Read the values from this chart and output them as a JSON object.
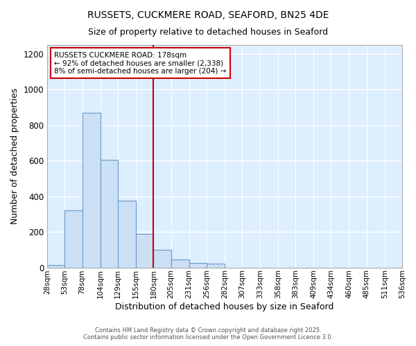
{
  "title1": "RUSSETS, CUCKMERE ROAD, SEAFORD, BN25 4DE",
  "title2": "Size of property relative to detached houses in Seaford",
  "xlabel": "Distribution of detached houses by size in Seaford",
  "ylabel": "Number of detached properties",
  "bin_edges": [
    28,
    53,
    78,
    104,
    129,
    155,
    180,
    205,
    231,
    256,
    282,
    307,
    333,
    358,
    383,
    409,
    434,
    460,
    485,
    511,
    536
  ],
  "bar_heights": [
    15,
    320,
    870,
    605,
    375,
    190,
    100,
    45,
    25,
    20,
    0,
    0,
    0,
    0,
    0,
    0,
    0,
    0,
    0,
    0
  ],
  "bar_color": "#cce0f5",
  "bar_edge_color": "#6699cc",
  "vline_x": 180,
  "vline_color": "#cc0000",
  "annotation_text": "RUSSETS CUCKMERE ROAD: 178sqm\n← 92% of detached houses are smaller (2,338)\n8% of semi-detached houses are larger (204) →",
  "annotation_box_color": "#ffffff",
  "annotation_box_edge": "#cc0000",
  "ylim": [
    0,
    1250
  ],
  "yticks": [
    0,
    200,
    400,
    600,
    800,
    1000,
    1200
  ],
  "plot_bg_color": "#ddeeff",
  "fig_bg_color": "#ffffff",
  "grid_color": "#ffffff",
  "footer1": "Contains HM Land Registry data © Crown copyright and database right 2025.",
  "footer2": "Contains public sector information licensed under the Open Government Licence 3.0."
}
